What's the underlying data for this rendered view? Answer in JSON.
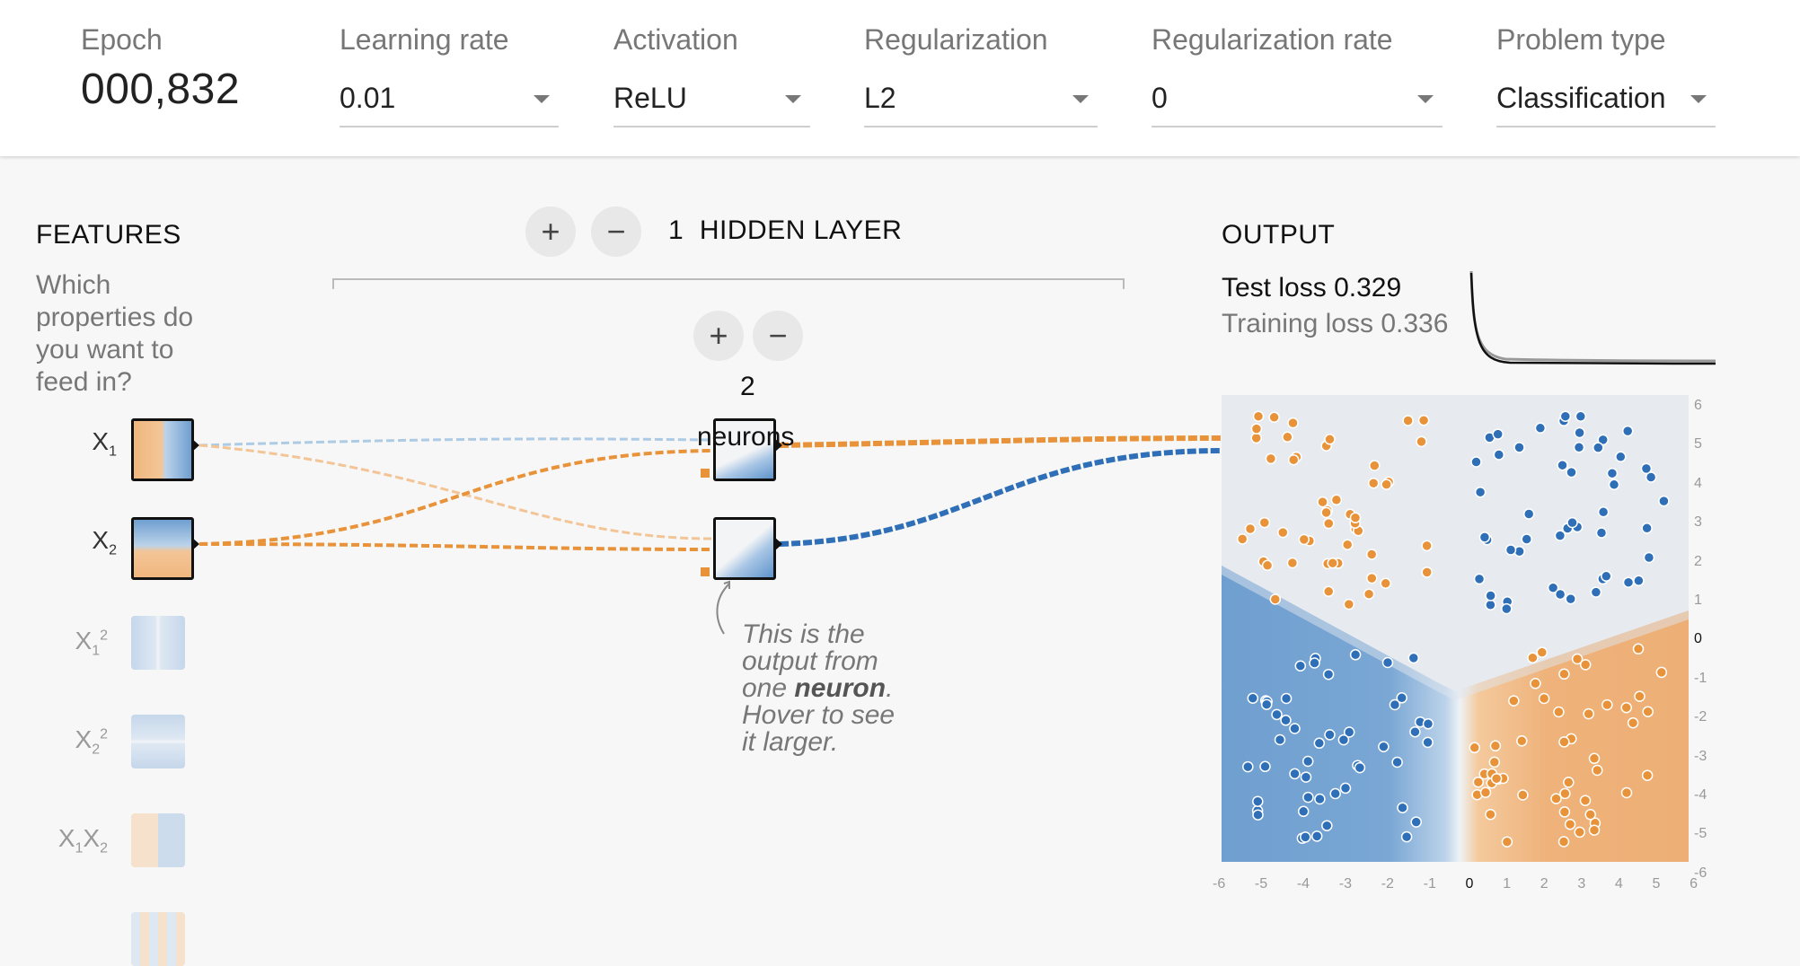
{
  "header": {
    "epoch_label": "Epoch",
    "epoch_value": "000,832",
    "learning_rate": {
      "label": "Learning rate",
      "value": "0.01"
    },
    "activation": {
      "label": "Activation",
      "value": "ReLU"
    },
    "regularization": {
      "label": "Regularization",
      "value": "L2"
    },
    "regularization_rate": {
      "label": "Regularization rate",
      "value": "0"
    },
    "problem_type": {
      "label": "Problem type",
      "value": "Classification"
    }
  },
  "features": {
    "heading": "FEATURES",
    "question": [
      "Which",
      "properties do",
      "you want to",
      "feed in?"
    ]
  },
  "hidden": {
    "add_layer": "+",
    "remove_layer": "−",
    "layer_count": "1",
    "layer_label": "HIDDEN LAYER",
    "add_neuron": "+",
    "remove_neuron": "−",
    "neuron_count": "2",
    "neuron_label": "neurons"
  },
  "annotation": {
    "pre": "This is the",
    "line2": "output from",
    "line3_pre": "one ",
    "line3_bold": "neuron",
    "line3_post": ".",
    "line4": "Hover to see",
    "line5": "it larger."
  },
  "output": {
    "heading": "OUTPUT",
    "test_loss_label": "Test loss",
    "test_loss": "0.329",
    "training_loss_label": "Training loss",
    "training_loss": "0.336",
    "right_ticks": [
      "6",
      "5",
      "4",
      "3",
      "2",
      "1",
      "0",
      "-1",
      "-2",
      "-3",
      "-4",
      "-5",
      "-6"
    ],
    "bottom_ticks": [
      "-6",
      "-5",
      "-4",
      "-3",
      "-2",
      "-1",
      "0",
      "1",
      "2",
      "3",
      "4",
      "5",
      "6"
    ]
  },
  "colors": {
    "orange": "#e8933a",
    "blue": "#2e6fb7",
    "pale_blue": "#aecbe5"
  }
}
